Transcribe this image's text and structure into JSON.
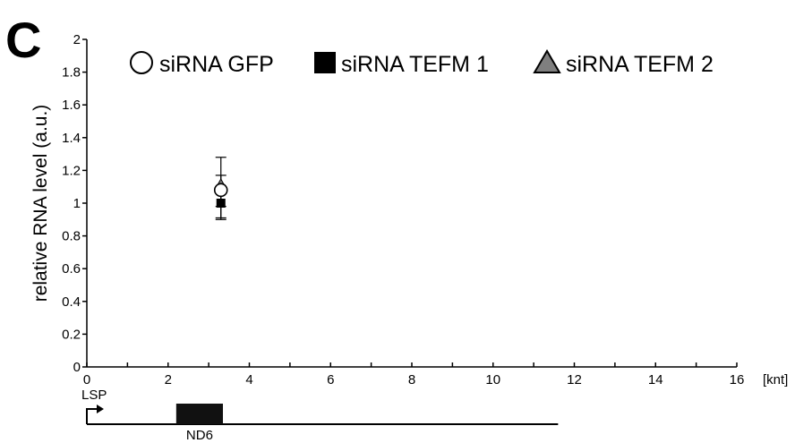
{
  "panel_label": "C",
  "chart_data": {
    "type": "scatter",
    "title": "",
    "xlabel": "",
    "x_unit": "[knt]",
    "ylabel": "relative RNA level (a.u.)",
    "xlim": [
      0,
      16
    ],
    "ylim": [
      0,
      2
    ],
    "x_ticks": [
      "0",
      "2",
      "4",
      "6",
      "8",
      "10",
      "12",
      "14",
      "16"
    ],
    "y_ticks": [
      "0",
      "0.2",
      "0.4",
      "0.6",
      "0.8",
      "1",
      "1.2",
      "1.4",
      "1.6",
      "1.8",
      "2"
    ],
    "legend_position": "top",
    "series": [
      {
        "name": "siRNA GFP",
        "marker": "circle-open",
        "color": "#000000",
        "points": [
          {
            "x": 3.3,
            "y": 1.08,
            "err_low": 0.17,
            "err_high": 0.2
          }
        ]
      },
      {
        "name": "siRNA TEFM 1",
        "marker": "square-filled",
        "color": "#000000",
        "points": [
          {
            "x": 3.3,
            "y": 1.0,
            "err_low": 0.1,
            "err_high": 0.1
          }
        ]
      },
      {
        "name": "siRNA TEFM 2",
        "marker": "triangle-filled",
        "color": "#7f7f7f",
        "points": [
          {
            "x": 3.3,
            "y": 1.12,
            "err_low": 0.14,
            "err_high": 0.05
          }
        ]
      }
    ]
  },
  "gene_map": {
    "promoter_label": "LSP",
    "gene_label": "ND6",
    "line_start": 0,
    "line_end": 11.6,
    "gene_start": 2.2,
    "gene_end": 3.35
  }
}
